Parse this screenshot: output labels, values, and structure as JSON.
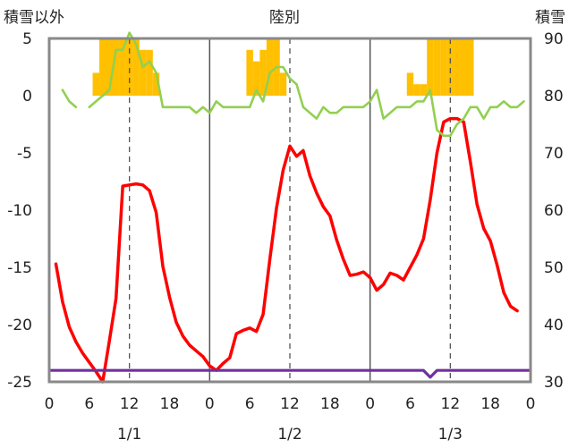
{
  "chart_data": {
    "type": "line",
    "title": "陸別",
    "left_axis_label": "積雪以外",
    "right_axis_label": "積雪",
    "left_ylim": [
      -25,
      5
    ],
    "left_ticks": [
      "5",
      "0",
      "-5",
      "-10",
      "-15",
      "-20",
      "-25"
    ],
    "left_tick_values": [
      5,
      0,
      -5,
      -10,
      -15,
      -20,
      -25
    ],
    "right_ylim": [
      30,
      90
    ],
    "right_ticks": [
      "90",
      "80",
      "70",
      "60",
      "50",
      "40",
      "30"
    ],
    "right_tick_values": [
      90,
      80,
      70,
      60,
      50,
      40,
      30
    ],
    "x_range_hours": [
      0,
      72
    ],
    "x_tick_hours": [
      0,
      6,
      12,
      18,
      24,
      30,
      36,
      42,
      48,
      54,
      60,
      66,
      72
    ],
    "x_tick_labels": [
      "0",
      "6",
      "12",
      "18",
      "0",
      "6",
      "12",
      "18",
      "0",
      "6",
      "12",
      "18",
      "0"
    ],
    "day_labels": [
      "1/1",
      "1/2",
      "1/3"
    ],
    "day_label_hours": [
      12,
      36,
      60
    ],
    "grid": "dashed vertical lines at 12 h, solid day separators at 24 h and 48 h",
    "series": [
      {
        "id": "precipitation",
        "axis": "left",
        "style": "bars",
        "color": "#FFC000",
        "hours": [
          7,
          8,
          9,
          10,
          11,
          12,
          13,
          14,
          15,
          16,
          30,
          31,
          32,
          33,
          34,
          35,
          54,
          55,
          56,
          57,
          58,
          59,
          60,
          61,
          62,
          63
        ],
        "values": [
          2,
          5,
          5,
          5,
          5,
          5,
          5,
          4,
          4,
          2,
          4,
          3,
          4,
          5,
          5,
          2,
          2,
          1,
          1,
          5,
          5,
          5,
          5,
          5,
          5,
          5
        ]
      },
      {
        "id": "temperature",
        "axis": "left",
        "color": "#FF0000",
        "hours": [
          1,
          2,
          3,
          4,
          5,
          6,
          7,
          8,
          9,
          10,
          11,
          12,
          13,
          14,
          15,
          16,
          17,
          18,
          19,
          20,
          21,
          22,
          23,
          24,
          25,
          26,
          27,
          28,
          29,
          30,
          31,
          32,
          33,
          34,
          35,
          36,
          37,
          38,
          39,
          40,
          41,
          42,
          43,
          44,
          45,
          46,
          47,
          48,
          49,
          50,
          51,
          52,
          53,
          54,
          55,
          56,
          57,
          58,
          59,
          60,
          61,
          62,
          63,
          64,
          65,
          66,
          67,
          68,
          69,
          70,
          71
        ],
        "values": [
          -14.7,
          -18.0,
          -20.2,
          -21.5,
          -22.5,
          -23.3,
          -24.1,
          -25.0,
          -21.4,
          -17.7,
          -7.9,
          -7.8,
          -7.7,
          -7.8,
          -8.3,
          -10.2,
          -14.9,
          -17.6,
          -19.8,
          -21.0,
          -21.8,
          -22.3,
          -22.8,
          -23.6,
          -24.0,
          -23.4,
          -22.9,
          -20.8,
          -20.5,
          -20.3,
          -20.6,
          -19.1,
          -14.3,
          -9.8,
          -6.5,
          -4.4,
          -5.3,
          -4.8,
          -7.0,
          -8.5,
          -9.7,
          -10.5,
          -12.6,
          -14.3,
          -15.7,
          -15.6,
          -15.4,
          -15.9,
          -17.0,
          -16.5,
          -15.5,
          -15.7,
          -16.1,
          -15.0,
          -13.9,
          -12.5,
          -9.1,
          -5.0,
          -2.3,
          -2.0,
          -2.0,
          -2.3,
          -5.8,
          -9.5,
          -11.6,
          -12.7,
          -14.8,
          -17.2,
          -18.4,
          -18.8,
          null
        ]
      },
      {
        "id": "snow_depth",
        "axis": "right",
        "color": "#92D050",
        "hours": [
          2,
          3,
          4,
          5,
          6,
          7,
          8,
          9,
          10,
          11,
          12,
          13,
          14,
          15,
          16,
          17,
          18,
          19,
          20,
          21,
          22,
          23,
          24,
          25,
          26,
          27,
          28,
          29,
          30,
          31,
          32,
          33,
          34,
          35,
          36,
          37,
          38,
          39,
          40,
          41,
          42,
          43,
          44,
          45,
          46,
          47,
          48,
          49,
          50,
          51,
          52,
          53,
          54,
          55,
          56,
          57,
          58,
          59,
          60,
          61,
          62,
          63,
          64,
          65,
          66,
          67,
          68,
          69,
          70,
          71
        ],
        "values": [
          81,
          79,
          78,
          null,
          78,
          79,
          80,
          81,
          88,
          88,
          91,
          89,
          85,
          86,
          84,
          78,
          78,
          78,
          78,
          78,
          77,
          78,
          77,
          79,
          78,
          78,
          78,
          78,
          78,
          81,
          79,
          84,
          85,
          85,
          83,
          82,
          78,
          77,
          76,
          78,
          77,
          77,
          78,
          78,
          78,
          78,
          79,
          81,
          76,
          77,
          78,
          78,
          78,
          79,
          79,
          81,
          74,
          73,
          73,
          75,
          76,
          78,
          78,
          76,
          78,
          78,
          79,
          78,
          78,
          79
        ]
      },
      {
        "id": "wind_line",
        "axis": "left",
        "color": "#7030A0",
        "hours": [
          0,
          56,
          57,
          58,
          72
        ],
        "values": [
          -24.0,
          -24.0,
          -24.6,
          -24.0,
          -24.0
        ]
      }
    ]
  }
}
